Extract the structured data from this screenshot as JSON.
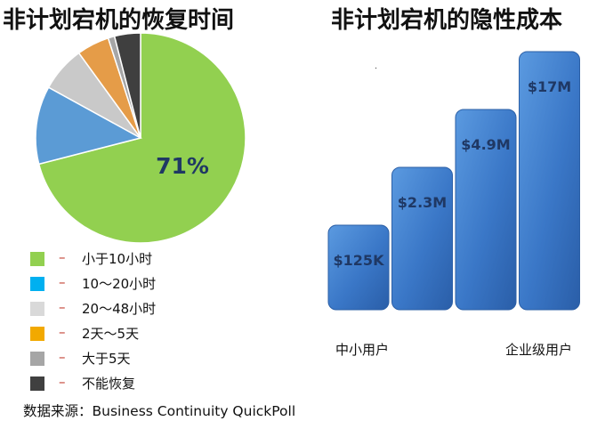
{
  "chart_data": [
    {
      "type": "pie",
      "title": "非计划宕机的恢复时间",
      "slices": [
        {
          "label": "小于10小时",
          "value": 71,
          "color": "#92d050"
        },
        {
          "label": "10～20小时",
          "value": 12,
          "color": "#5b9bd5"
        },
        {
          "label": "20～48小时",
          "value": 7,
          "color": "#c9c9c9"
        },
        {
          "label": "2天～5天",
          "value": 5,
          "color": "#e59c48"
        },
        {
          "label": "大于5天",
          "value": 1,
          "color": "#a6a6a6"
        },
        {
          "label": "不能恢复",
          "value": 4,
          "color": "#3f3f3f"
        }
      ],
      "data_label": "71%",
      "legend": [
        {
          "label": "小于10小时",
          "color": "#92d050"
        },
        {
          "label": "10～20小时",
          "color": "#00b0f0"
        },
        {
          "label": "20～48小时",
          "color": "#d9d9d9"
        },
        {
          "label": "2天～5天",
          "color": "#f2a900"
        },
        {
          "label": "大于5天",
          "color": "#a6a6a6"
        },
        {
          "label": "不能恢复",
          "color": "#404040"
        }
      ],
      "legend_dash": "–",
      "legend_position": "bottom-left",
      "source": "数据来源：Business  Continuity  QuickPoll"
    },
    {
      "type": "bar",
      "title": "非计划宕机的隐性成本",
      "categories": [
        "",
        "",
        "",
        ""
      ],
      "values": [
        0.125,
        2.3,
        4.9,
        17
      ],
      "labels": [
        "$125K",
        "$2.3M",
        "$4.9M",
        "$17M"
      ],
      "bar_color": "#3a77c7",
      "x_left_label": "中小用户",
      "x_right_label": "企业级用户",
      "grid": false
    }
  ]
}
